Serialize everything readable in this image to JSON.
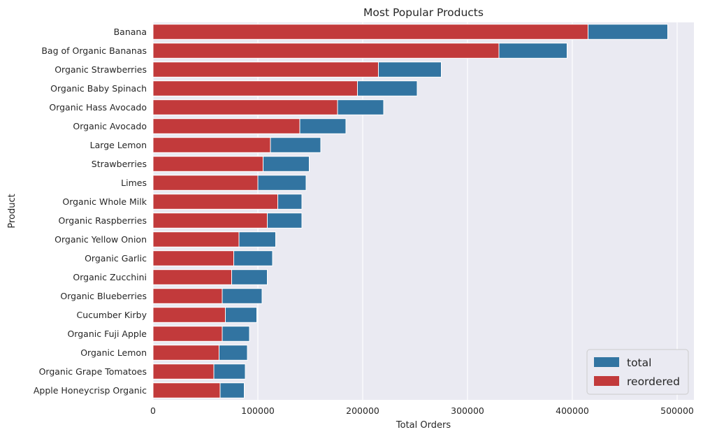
{
  "chart_data": {
    "type": "bar",
    "orientation": "horizontal",
    "title": "Most Popular Products",
    "xlabel": "Total Orders",
    "ylabel": "Product",
    "xlim": [
      0,
      516000
    ],
    "xticks": [
      0,
      100000,
      200000,
      300000,
      400000,
      500000
    ],
    "xtick_labels": [
      "0",
      "100000",
      "200000",
      "300000",
      "400000",
      "500000"
    ],
    "grid": true,
    "legend_position": "bottom-right",
    "categories": [
      "Banana",
      "Bag of Organic Bananas",
      "Organic Strawberries",
      "Organic Baby Spinach",
      "Organic Hass Avocado",
      "Organic Avocado",
      "Large Lemon",
      "Strawberries",
      "Limes",
      "Organic Whole Milk",
      "Organic Raspberries",
      "Organic Yellow Onion",
      "Organic Garlic",
      "Organic Zucchini",
      "Organic Blueberries",
      "Cucumber Kirby",
      "Organic Fuji Apple",
      "Organic Lemon",
      "Organic Grape Tomatoes",
      "Apple Honeycrisp Organic"
    ],
    "series": [
      {
        "name": "total",
        "color": "#3274a1",
        "values": [
          491000,
          395000,
          275000,
          252000,
          220000,
          184000,
          160000,
          149000,
          146000,
          142000,
          142000,
          117000,
          114000,
          109000,
          104000,
          99000,
          92000,
          90000,
          88000,
          87000
        ]
      },
      {
        "name": "reordered",
        "color": "#c23a3b",
        "values": [
          415000,
          330000,
          215000,
          195000,
          176000,
          140000,
          112000,
          105000,
          100000,
          119000,
          109000,
          82000,
          77000,
          75000,
          66000,
          69000,
          66000,
          63000,
          58000,
          64000
        ]
      }
    ]
  },
  "style": {
    "plot_background": "#eaeaf2",
    "grid_color": "#ffffff",
    "text_color": "#262626"
  }
}
